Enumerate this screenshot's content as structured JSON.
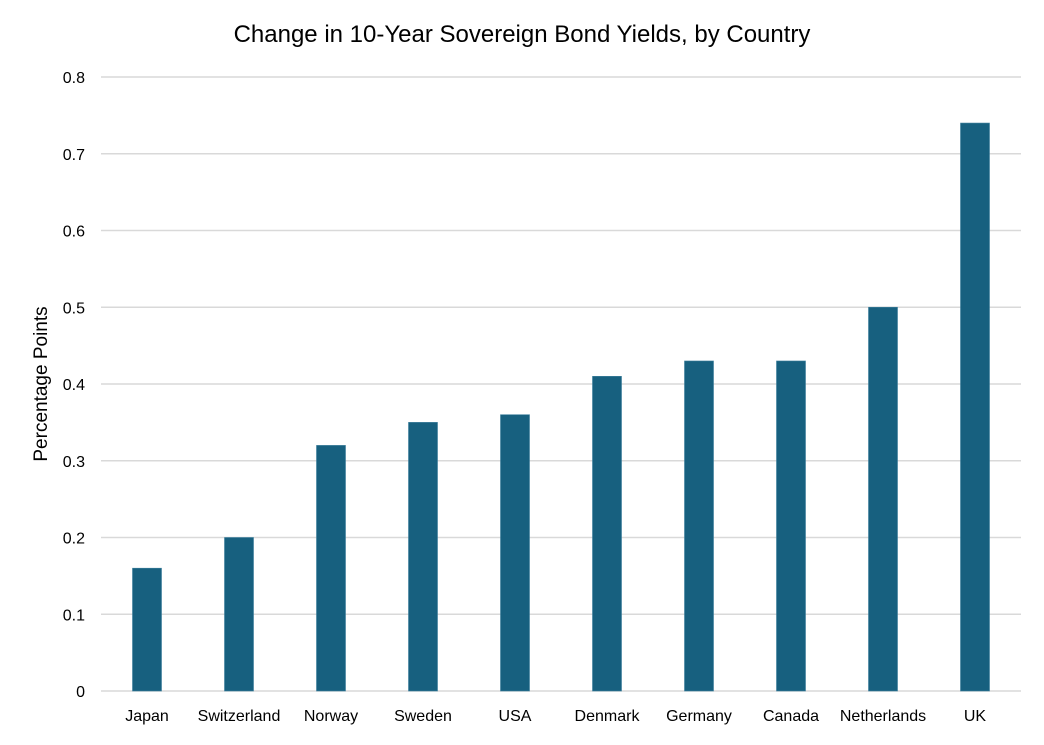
{
  "chart_data": {
    "type": "bar",
    "title": "Change in 10-Year Sovereign Bond Yields, by Country",
    "xlabel": "",
    "ylabel": "Percentage Points",
    "categories": [
      "Japan",
      "Switzerland",
      "Norway",
      "Sweden",
      "USA",
      "Denmark",
      "Germany",
      "Canada",
      "Netherlands",
      "UK"
    ],
    "values": [
      0.16,
      0.2,
      0.32,
      0.35,
      0.36,
      0.41,
      0.43,
      0.43,
      0.5,
      0.74
    ],
    "ylim": [
      0,
      0.8
    ],
    "yticks": [
      "0",
      "0.1",
      "0.2",
      "0.3",
      "0.4",
      "0.5",
      "0.6",
      "0.7",
      "0.8"
    ],
    "grid": true,
    "legend": "none",
    "bar_color": "#17607f",
    "grid_color": "#d9d9d9"
  }
}
